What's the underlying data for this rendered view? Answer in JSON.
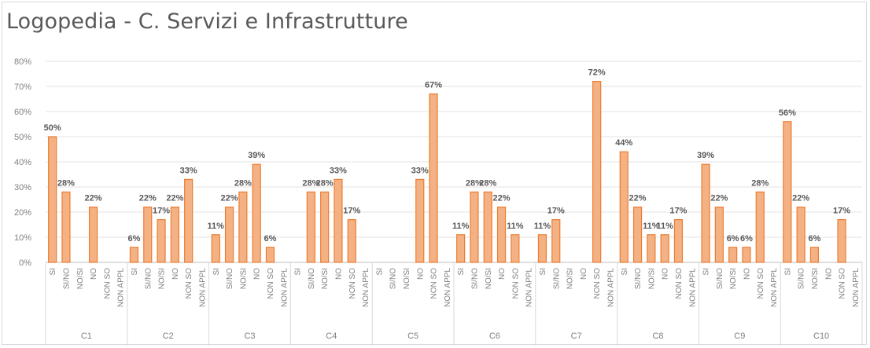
{
  "chart_data": {
    "type": "bar",
    "title": "Logopedia - C. Servizi e Infrastrutture",
    "ylim": [
      0,
      80
    ],
    "yticks": [
      "0%",
      "10%",
      "20%",
      "30%",
      "40%",
      "50%",
      "60%",
      "70%",
      "80%"
    ],
    "grid": true,
    "legend": "none",
    "bar_color": "#f4b183",
    "bar_edge_color": "#ed7d31",
    "categories": [
      "SI",
      "SI/NO",
      "NO/SI",
      "NO",
      "NON SO",
      "NON APPL"
    ],
    "groups": [
      {
        "name": "C1",
        "values": [
          50,
          28,
          null,
          22,
          null,
          null
        ],
        "labels": [
          "50%",
          "28%",
          "",
          "22%",
          "",
          ""
        ]
      },
      {
        "name": "C2",
        "values": [
          6,
          22,
          17,
          22,
          33,
          null
        ],
        "labels": [
          "6%",
          "22%",
          "17%",
          "22%",
          "33%",
          ""
        ]
      },
      {
        "name": "C3",
        "values": [
          11,
          22,
          28,
          39,
          6,
          null
        ],
        "labels": [
          "11%",
          "22%",
          "28%",
          "39%",
          "6%",
          ""
        ]
      },
      {
        "name": "C4",
        "values": [
          null,
          28,
          28,
          33,
          17,
          null
        ],
        "labels": [
          "",
          "28%",
          "28%",
          "33%",
          "17%",
          ""
        ]
      },
      {
        "name": "C5",
        "values": [
          null,
          null,
          null,
          33,
          67,
          null
        ],
        "labels": [
          "",
          "",
          "",
          "33%",
          "67%",
          ""
        ]
      },
      {
        "name": "C6",
        "values": [
          11,
          28,
          28,
          22,
          11,
          null
        ],
        "labels": [
          "11%",
          "28%",
          "28%",
          "22%",
          "11%",
          ""
        ]
      },
      {
        "name": "C7",
        "values": [
          11,
          17,
          null,
          null,
          72,
          null
        ],
        "labels": [
          "11%",
          "17%",
          "",
          "",
          "72%",
          ""
        ]
      },
      {
        "name": "C8",
        "values": [
          44,
          22,
          11,
          11,
          17,
          null
        ],
        "labels": [
          "44%",
          "22%",
          "11%",
          "11%",
          "17%",
          ""
        ]
      },
      {
        "name": "C9",
        "values": [
          39,
          22,
          6,
          6,
          28,
          null
        ],
        "labels": [
          "39%",
          "22%",
          "6%",
          "6%",
          "28%",
          ""
        ]
      },
      {
        "name": "C10",
        "values": [
          56,
          22,
          6,
          null,
          17,
          null
        ],
        "labels": [
          "56%",
          "22%",
          "6%",
          "",
          "17%",
          ""
        ]
      }
    ]
  }
}
